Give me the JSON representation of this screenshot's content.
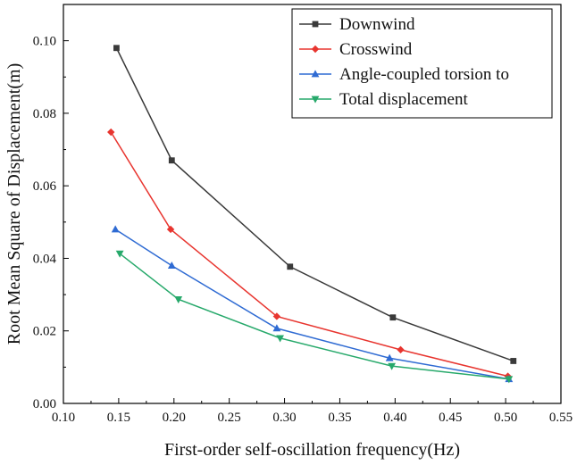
{
  "chart_data": {
    "type": "line",
    "xlabel": "First-order self-oscillation frequency(Hz)",
    "ylabel": "Root Mean Square of Displacement(m)",
    "xlim": [
      0.1,
      0.55
    ],
    "ylim": [
      0.0,
      0.11
    ],
    "xticks": [
      "0.10",
      "0.15",
      "0.20",
      "0.25",
      "0.30",
      "0.35",
      "0.40",
      "0.45",
      "0.50",
      "0.55"
    ],
    "yticks": [
      "0.00",
      "0.02",
      "0.04",
      "0.06",
      "0.08",
      "0.10"
    ],
    "legend_position": "top-right",
    "series": [
      {
        "name": "Downwind",
        "color": "#3a3a3a",
        "marker": "square",
        "x": [
          0.148,
          0.198,
          0.305,
          0.398,
          0.507
        ],
        "y": [
          0.098,
          0.067,
          0.0377,
          0.0237,
          0.0117
        ]
      },
      {
        "name": "Crosswind",
        "color": "#e8352f",
        "marker": "diamond",
        "x": [
          0.143,
          0.197,
          0.293,
          0.405,
          0.502
        ],
        "y": [
          0.0748,
          0.048,
          0.024,
          0.0148,
          0.0075
        ]
      },
      {
        "name": "Angle-coupled torsion to",
        "color": "#2f6bd3",
        "marker": "triangle-up",
        "x": [
          0.147,
          0.198,
          0.293,
          0.395,
          0.503
        ],
        "y": [
          0.048,
          0.038,
          0.0207,
          0.0125,
          0.0067
        ]
      },
      {
        "name": "Total displacement",
        "color": "#27a96b",
        "marker": "triangle-down",
        "x": [
          0.151,
          0.204,
          0.296,
          0.397,
          0.503
        ],
        "y": [
          0.0413,
          0.0287,
          0.018,
          0.0103,
          0.0067
        ]
      }
    ]
  }
}
